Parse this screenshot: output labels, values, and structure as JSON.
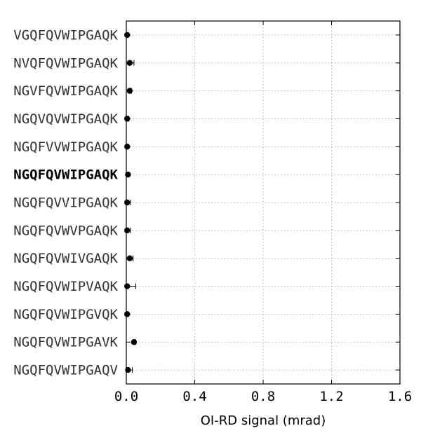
{
  "chart_data": {
    "type": "scatter",
    "orientation": "horizontal",
    "title": "",
    "xlabel": "OI-RD signal (mrad)",
    "ylabel": "",
    "xlim": [
      0.0,
      1.6
    ],
    "xticks": [
      0.0,
      0.4,
      0.8,
      1.2,
      1.6
    ],
    "xtick_labels": [
      "0.0",
      "0.4",
      "0.8",
      "1.2",
      "1.6"
    ],
    "grid": true,
    "reference_category": "NGQFQVWIPGAQK",
    "categories": [
      "VGQFQVWIPGAQK",
      "NVQFQVWIPGAQK",
      "NGVFQVWIPGAQK",
      "NGQVQVWIPGAQK",
      "NGQFVVWIPGAQK",
      "NGQFQVWIPGAQK",
      "NGQFQVVIPGAQK",
      "NGQFQVWVPGAQK",
      "NGQFQVWIVGAQK",
      "NGQFQVWIPVAQK",
      "NGQFQVWIPGVQK",
      "NGQFQVWIPGAVK",
      "NGQFQVWIPGAQV"
    ],
    "values": [
      0.005,
      0.02,
      0.02,
      0.005,
      0.005,
      0.01,
      0.005,
      0.005,
      0.02,
      0.005,
      0.005,
      0.045,
      0.01
    ],
    "errors": [
      0.005,
      0.025,
      0.01,
      0.01,
      0.005,
      0.005,
      0.02,
      0.02,
      0.02,
      0.05,
      0.005,
      0.01,
      0.025
    ],
    "marker_color": "#000000",
    "grid_color": "#b0b0b0"
  }
}
